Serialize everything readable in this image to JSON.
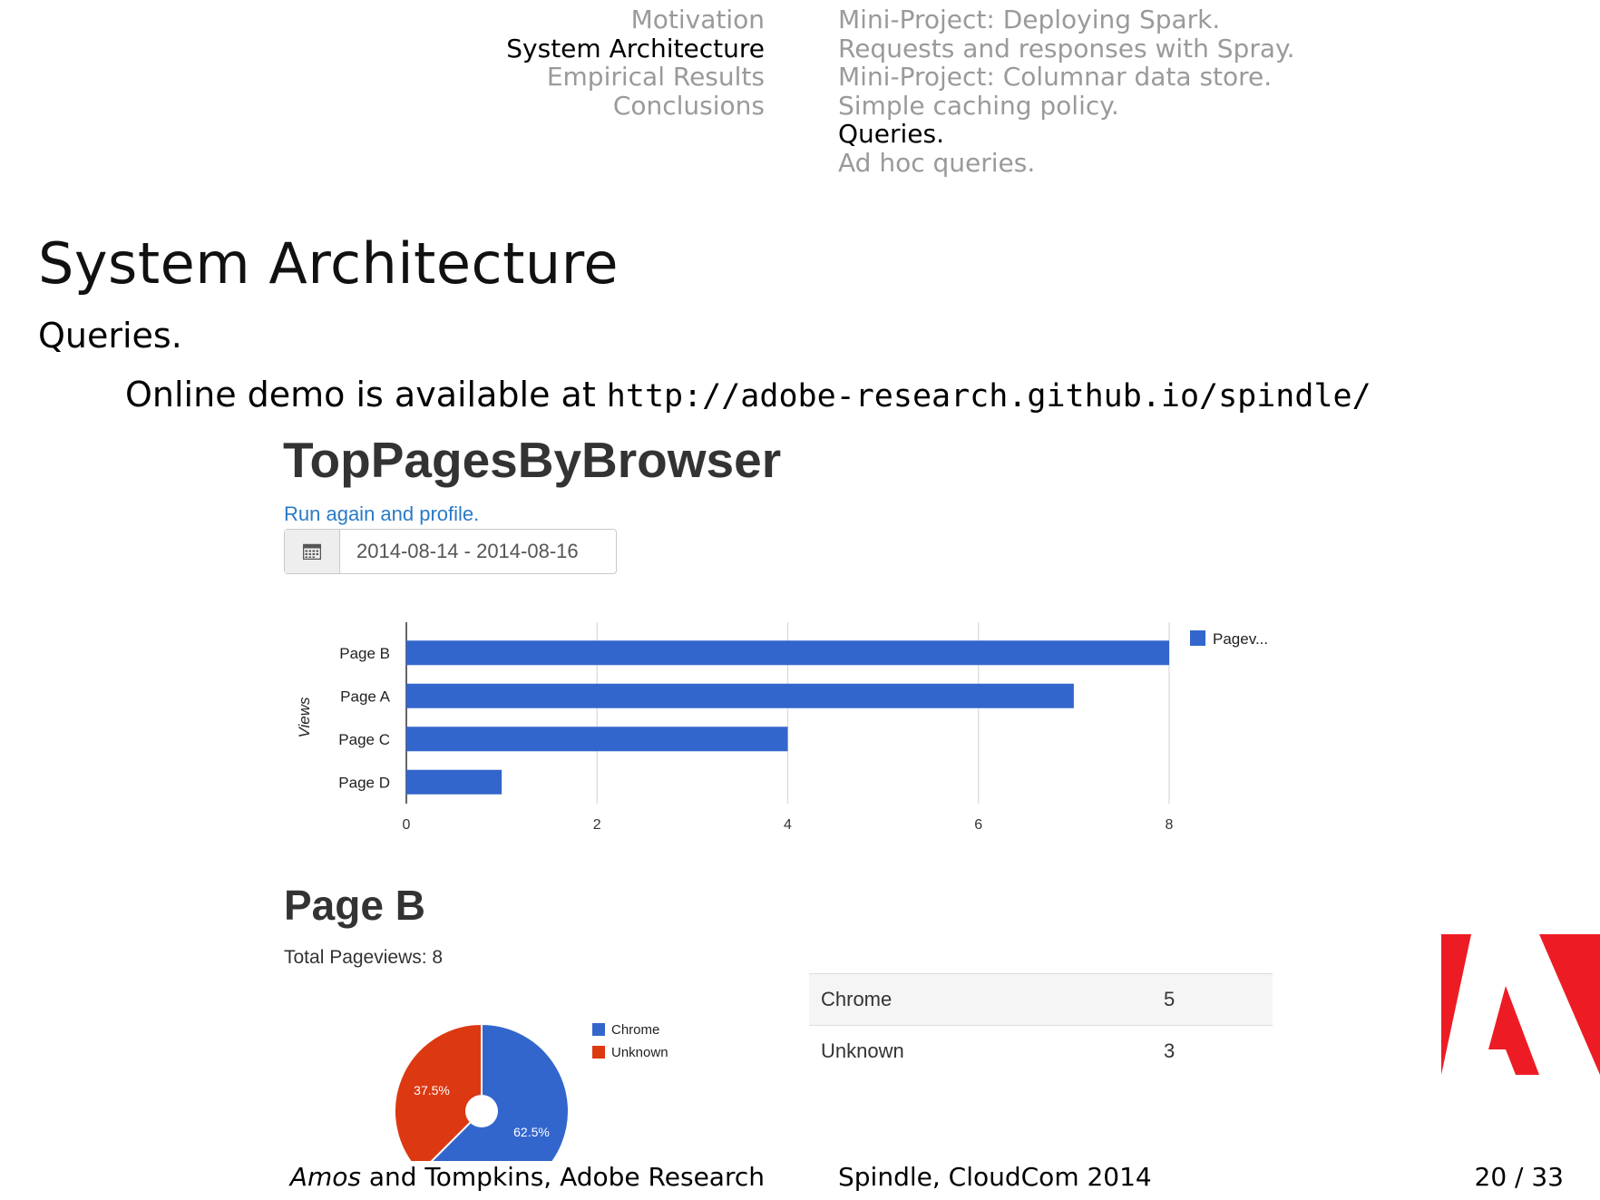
{
  "nav": {
    "sections": [
      {
        "label": "Motivation",
        "active": false
      },
      {
        "label": "System Architecture",
        "active": true
      },
      {
        "label": "Empirical Results",
        "active": false
      },
      {
        "label": "Conclusions",
        "active": false
      }
    ],
    "subsections": [
      {
        "label": "Mini-Project: Deploying Spark.",
        "active": false
      },
      {
        "label": "Requests and responses with Spray.",
        "active": false
      },
      {
        "label": "Mini-Project: Columnar data store.",
        "active": false
      },
      {
        "label": "Simple caching policy.",
        "active": false
      },
      {
        "label": "Queries.",
        "active": true
      },
      {
        "label": "Ad hoc queries.",
        "active": false
      }
    ]
  },
  "frame": {
    "title": "System Architecture",
    "subtitle": "Queries.",
    "demo_prefix": "Online demo is available at ",
    "demo_url": "http://adobe-research.github.io/spindle/"
  },
  "app": {
    "title": "TopPagesByBrowser",
    "run_link": "Run again and profile.",
    "date_range": "2014-08-14 - 2014-08-16",
    "calendar_icon": "calendar-icon",
    "page_title": "Page B",
    "total_pageviews": "Total Pageviews: 8",
    "browser_table": [
      {
        "browser": "Chrome",
        "count": "5"
      },
      {
        "browser": "Unknown",
        "count": "3"
      }
    ]
  },
  "chart_data": [
    {
      "type": "bar",
      "orientation": "horizontal",
      "categories": [
        "Page B",
        "Page A",
        "Page C",
        "Page D"
      ],
      "series": [
        {
          "name": "Pagev...",
          "values": [
            8,
            7,
            4,
            1
          ],
          "color": "#3366cc"
        }
      ],
      "ylabel": "Views",
      "xlabel": "",
      "xlim": [
        0,
        8
      ],
      "xticks": [
        0,
        2,
        4,
        6,
        8
      ],
      "grid": true,
      "legend": "right"
    },
    {
      "type": "pie",
      "donut": true,
      "categories": [
        "Chrome",
        "Unknown"
      ],
      "values": [
        5,
        3
      ],
      "labels": [
        "62.5%",
        "37.5%"
      ],
      "colors": [
        "#3366cc",
        "#dc3912"
      ],
      "legend": "right"
    }
  ],
  "footer": {
    "author_italic": "Amos",
    "author_rest": " and Tompkins, Adobe Research",
    "conference": "Spindle, CloudCom 2014",
    "page": "20 / 33"
  },
  "colors": {
    "bar": "#3366cc",
    "pie_red": "#dc3912",
    "link": "#2a7ac6",
    "nav_inactive": "#9a9a9a",
    "adobe_red": "#ed1c24"
  }
}
